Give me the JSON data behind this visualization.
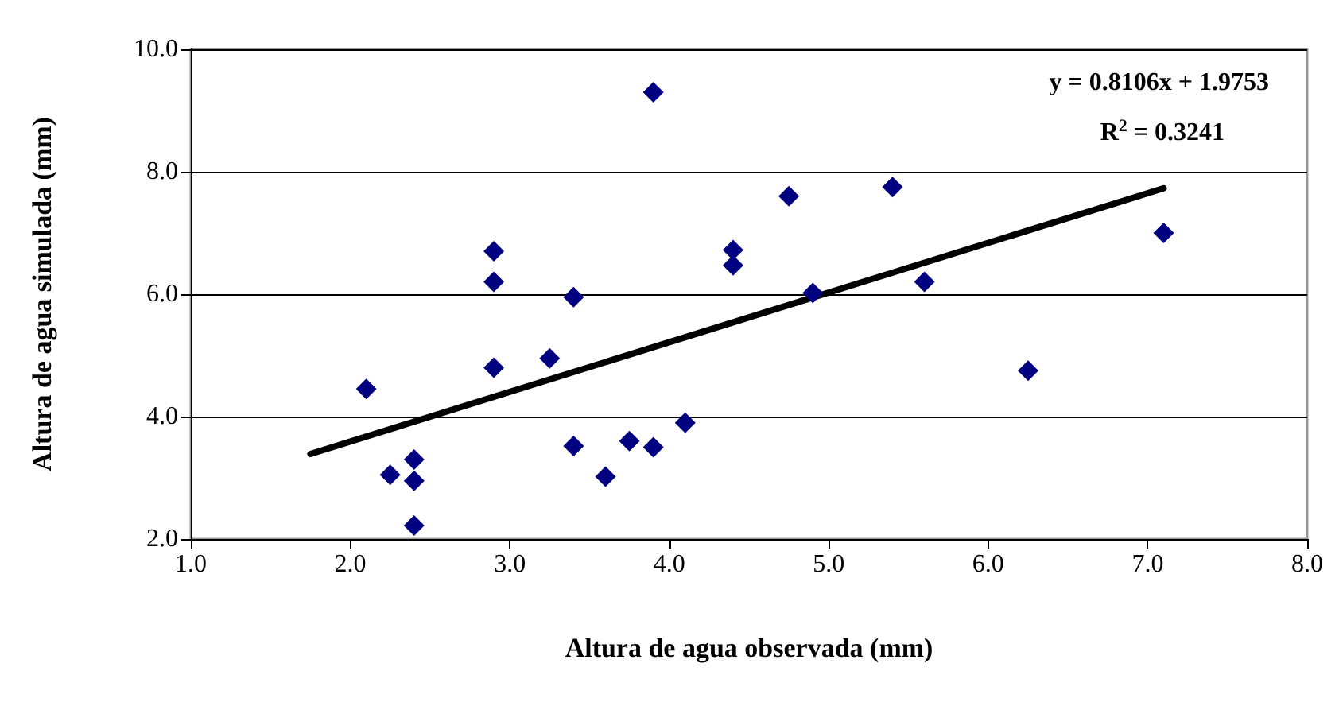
{
  "chart_data": {
    "type": "scatter",
    "xlabel": "Altura de agua observada (mm)",
    "ylabel": "Altura de agua simulada (mm)",
    "xlim": [
      1,
      8
    ],
    "xticks": [
      {
        "value": 1,
        "label": "1.0"
      },
      {
        "value": 2,
        "label": "2.0"
      },
      {
        "value": 3,
        "label": "3.0"
      },
      {
        "value": 4,
        "label": "4.0"
      },
      {
        "value": 5,
        "label": "5.0"
      },
      {
        "value": 6,
        "label": "6.0"
      },
      {
        "value": 7,
        "label": "7.0"
      },
      {
        "value": 8,
        "label": "8.0"
      }
    ],
    "ylim": [
      2,
      10
    ],
    "yticks": [
      {
        "value": 2,
        "label": "2.0"
      },
      {
        "value": 4,
        "label": "4.0"
      },
      {
        "value": 6,
        "label": "6.0"
      },
      {
        "value": 8,
        "label": "8.0"
      },
      {
        "value": 10,
        "label": "10.0"
      }
    ],
    "grid": "y",
    "marker": "diamond",
    "series": [
      {
        "color": "#000080",
        "x": [
          2.1,
          2.25,
          2.4,
          2.4,
          2.4,
          2.9,
          2.9,
          2.9,
          3.25,
          3.4,
          3.4,
          3.6,
          3.75,
          3.9,
          3.9,
          4.1,
          4.4,
          4.4,
          4.75,
          4.9,
          5.4,
          5.6,
          6.25,
          7.1
        ],
        "values": [
          4.45,
          3.05,
          3.3,
          2.95,
          2.22,
          6.7,
          6.2,
          4.8,
          4.95,
          5.95,
          3.52,
          3.02,
          3.6,
          3.5,
          9.3,
          3.9,
          6.72,
          6.47,
          7.6,
          6.02,
          7.75,
          6.2,
          4.75,
          7.0
        ]
      },
      {
        "type": "line",
        "color": "#000000",
        "marker": "none",
        "line_style": "solid",
        "x": [
          1.75,
          7.1
        ],
        "values": [
          3.39,
          7.73
        ]
      }
    ],
    "annotations": [
      "y = 0.8106x + 1.9753",
      "R$^{2}$ = 0.3241"
    ]
  }
}
